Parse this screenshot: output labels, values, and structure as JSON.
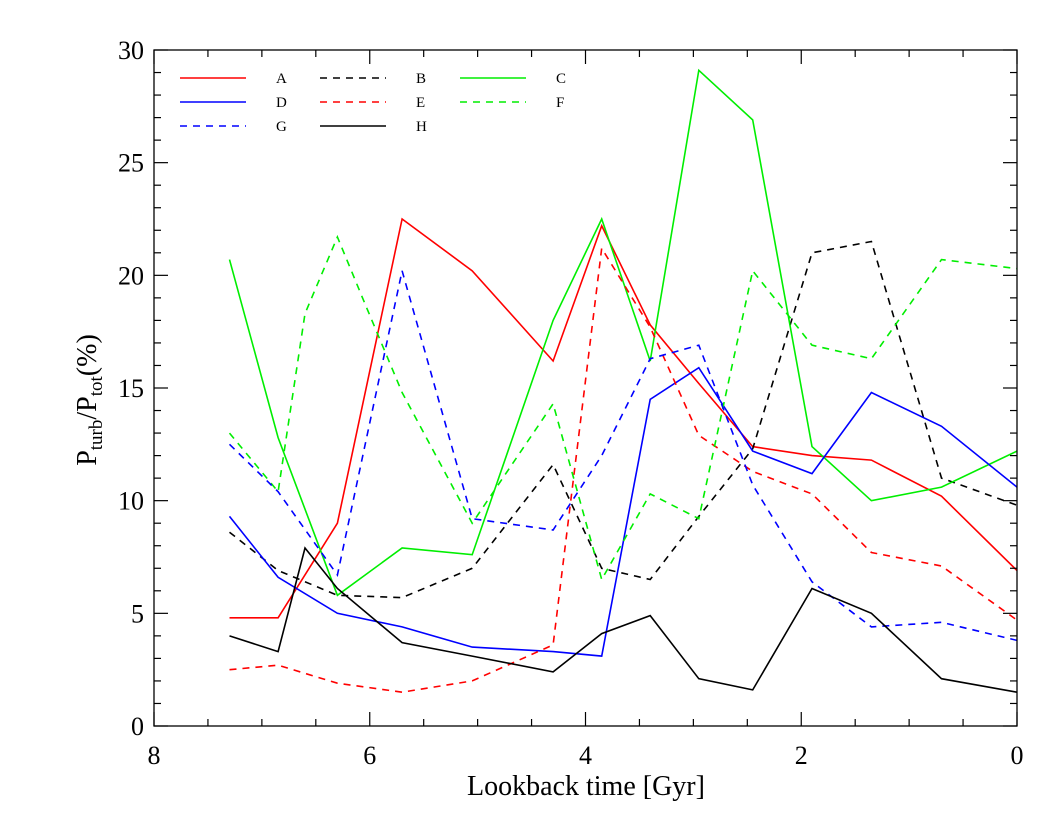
{
  "chart_data": {
    "type": "line",
    "xlabel": "Lookback time [Gyr]",
    "ylabel": {
      "main": "P",
      "sub1": "turb",
      "sep": "/P",
      "sub2": "tot",
      "tail": "(%)"
    },
    "xlim": [
      8,
      0
    ],
    "ylim": [
      0,
      30
    ],
    "xticks": [
      8,
      6,
      4,
      2,
      0
    ],
    "yticks": [
      0,
      5,
      10,
      15,
      20,
      25,
      30
    ],
    "x_minor_step": 0.5,
    "y_minor_step": 1,
    "grid": false,
    "legend_position": "top-left",
    "series": [
      {
        "name": "A",
        "color": "#ff0000",
        "dash": "solid",
        "x": [
          7.3,
          6.85,
          6.3,
          5.7,
          5.05,
          4.3,
          3.85,
          3.4,
          2.95,
          2.45,
          1.9,
          1.35,
          0.7,
          0.0
        ],
        "y": [
          4.8,
          4.8,
          9.0,
          22.5,
          20.2,
          16.2,
          22.2,
          17.8,
          15.2,
          12.4,
          12.0,
          11.8,
          10.2,
          6.9
        ]
      },
      {
        "name": "B",
        "color": "#000000",
        "dash": "dashed",
        "x": [
          7.3,
          6.85,
          6.3,
          5.7,
          5.05,
          4.3,
          3.85,
          3.4,
          2.95,
          2.45,
          1.9,
          1.35,
          0.7,
          0.0
        ],
        "y": [
          8.6,
          6.9,
          5.8,
          5.7,
          7.0,
          11.6,
          7.0,
          6.5,
          9.3,
          12.3,
          21.0,
          21.5,
          11.0,
          9.8
        ]
      },
      {
        "name": "C",
        "color": "#00ee00",
        "dash": "solid",
        "x": [
          7.3,
          6.85,
          6.3,
          5.7,
          5.05,
          4.3,
          3.85,
          3.4,
          2.95,
          2.45,
          1.9,
          1.35,
          0.7,
          0.0
        ],
        "y": [
          20.7,
          12.8,
          5.8,
          7.9,
          7.6,
          18.0,
          22.5,
          16.2,
          29.1,
          26.9,
          12.4,
          10.0,
          10.6,
          12.2
        ]
      },
      {
        "name": "D",
        "color": "#0000ff",
        "dash": "solid",
        "x": [
          7.3,
          6.85,
          6.3,
          5.7,
          5.05,
          4.3,
          3.85,
          3.4,
          2.95,
          2.45,
          1.9,
          1.35,
          0.7,
          0.0
        ],
        "y": [
          9.3,
          6.6,
          5.0,
          4.4,
          3.5,
          3.3,
          3.1,
          14.5,
          15.9,
          12.2,
          11.2,
          14.8,
          13.3,
          10.6
        ]
      },
      {
        "name": "E",
        "color": "#ff0000",
        "dash": "dashed",
        "x": [
          7.3,
          6.85,
          6.3,
          5.7,
          5.05,
          4.3,
          3.85,
          3.4,
          2.95,
          2.45,
          1.9,
          1.35,
          0.7,
          0.0
        ],
        "y": [
          2.5,
          2.7,
          1.9,
          1.5,
          2.0,
          3.6,
          21.2,
          17.7,
          12.9,
          11.3,
          10.3,
          7.7,
          7.1,
          4.7
        ]
      },
      {
        "name": "F",
        "color": "#00ee00",
        "dash": "dashed",
        "x": [
          7.3,
          6.85,
          6.6,
          6.3,
          6.05,
          5.7,
          5.05,
          4.3,
          3.85,
          3.4,
          2.95,
          2.45,
          1.9,
          1.35,
          0.7,
          0.0
        ],
        "y": [
          13.0,
          10.4,
          18.3,
          21.7,
          18.8,
          14.8,
          9.0,
          14.3,
          6.5,
          10.3,
          9.2,
          20.2,
          16.9,
          16.3,
          20.7,
          20.3
        ]
      },
      {
        "name": "G",
        "color": "#0000ff",
        "dash": "dashed",
        "x": [
          7.3,
          6.85,
          6.3,
          5.7,
          5.05,
          4.3,
          3.85,
          3.4,
          2.95,
          2.45,
          1.9,
          1.35,
          0.7,
          0.0
        ],
        "y": [
          12.5,
          10.4,
          6.7,
          20.2,
          9.2,
          8.7,
          12.0,
          16.3,
          16.9,
          10.7,
          6.4,
          4.4,
          4.6,
          3.8
        ]
      },
      {
        "name": "H",
        "color": "#000000",
        "dash": "solid",
        "x": [
          7.3,
          6.85,
          6.6,
          6.3,
          5.7,
          5.05,
          4.3,
          3.85,
          3.4,
          2.95,
          2.45,
          1.9,
          1.35,
          0.7,
          0.0
        ],
        "y": [
          4.0,
          3.3,
          7.9,
          6.1,
          3.7,
          3.1,
          2.4,
          4.1,
          4.9,
          2.1,
          1.6,
          6.1,
          5.0,
          2.1,
          1.5
        ]
      }
    ],
    "legend_order": [
      "A",
      "B",
      "C",
      "D",
      "E",
      "F",
      "G",
      "H"
    ]
  }
}
